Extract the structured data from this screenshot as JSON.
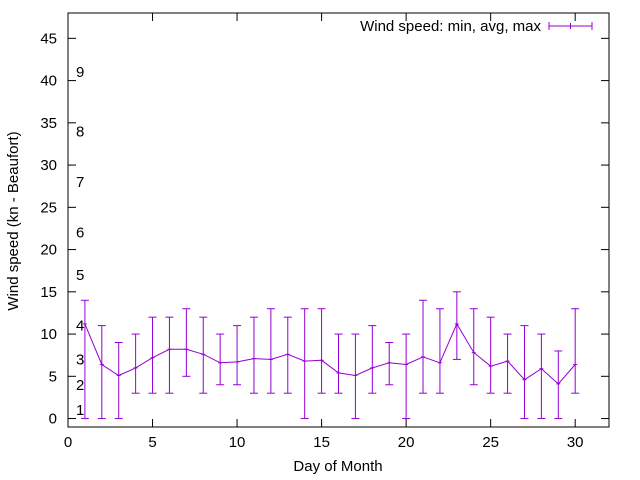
{
  "chart_data": {
    "type": "line",
    "subtype": "errorbars",
    "xlabel": "Day of Month",
    "ylabel": "Wind speed (kn - Beaufort)",
    "xlim": [
      0,
      32
    ],
    "ylim": [
      -1,
      48
    ],
    "xticks": [
      0,
      5,
      10,
      15,
      20,
      25,
      30
    ],
    "yticks": [
      0,
      5,
      10,
      15,
      20,
      25,
      30,
      35,
      40,
      45
    ],
    "grid": false,
    "legend_position": "top-right",
    "series": [
      {
        "name": "Wind speed: min, avg, max",
        "color": "#9400d3",
        "x": [
          1,
          2,
          3,
          4,
          5,
          6,
          7,
          8,
          9,
          10,
          11,
          12,
          13,
          14,
          15,
          16,
          17,
          18,
          19,
          20,
          21,
          22,
          23,
          24,
          25,
          26,
          27,
          28,
          29,
          30
        ],
        "avg": [
          11.2,
          6.4,
          5.1,
          6.0,
          7.2,
          8.2,
          8.2,
          7.6,
          6.6,
          6.7,
          7.1,
          7.0,
          7.6,
          6.8,
          6.9,
          5.4,
          5.1,
          6.0,
          6.6,
          6.4,
          7.3,
          6.6,
          11.2,
          7.8,
          6.2,
          6.8,
          4.6,
          5.9,
          4.1,
          6.4
        ],
        "min": [
          0,
          0,
          0,
          3,
          3,
          3,
          5,
          3,
          4,
          4,
          3,
          3,
          3,
          0,
          3,
          3,
          0,
          3,
          4,
          0,
          3,
          3,
          7,
          4,
          3,
          3,
          0,
          0,
          0,
          3
        ],
        "max": [
          14,
          11,
          9,
          10,
          12,
          12,
          13,
          12,
          10,
          11,
          12,
          13,
          12,
          13,
          13,
          10,
          10,
          11,
          9,
          10,
          14,
          13,
          15,
          13,
          12,
          10,
          11,
          10,
          8,
          13
        ]
      }
    ],
    "beaufort_scale": [
      {
        "label": "1",
        "value": 1
      },
      {
        "label": "2",
        "value": 4
      },
      {
        "label": "3",
        "value": 7
      },
      {
        "label": "4",
        "value": 11
      },
      {
        "label": "5",
        "value": 17
      },
      {
        "label": "6",
        "value": 22
      },
      {
        "label": "7",
        "value": 28
      },
      {
        "label": "8",
        "value": 34
      },
      {
        "label": "9",
        "value": 41
      }
    ]
  }
}
